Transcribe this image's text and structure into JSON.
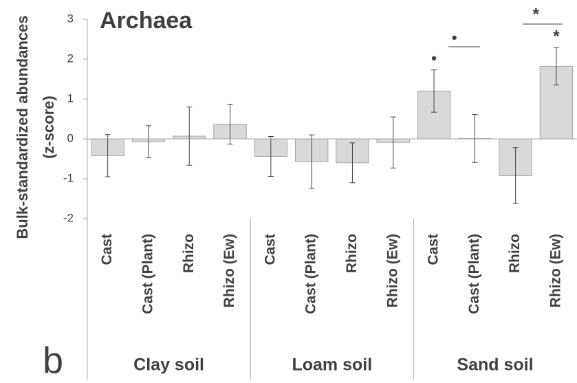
{
  "chart_data": {
    "type": "bar",
    "title": "Archaea",
    "panel_label": "b",
    "ylabel": [
      "Bulk-standardized abundances",
      "(z-score)"
    ],
    "categories": [
      "Cast",
      "Cast (Plant)",
      "Rhizo",
      "Rhizo (Ew)",
      "Cast",
      "Cast (Plant)",
      "Rhizo",
      "Rhizo (Ew)",
      "Cast",
      "Cast (Plant)",
      "Rhizo",
      "Rhizo (Ew)"
    ],
    "groups": [
      "Clay soil",
      "Loam soil",
      "Sand soil"
    ],
    "values": [
      -0.42,
      -0.07,
      0.07,
      0.37,
      -0.44,
      -0.57,
      -0.6,
      -0.09,
      1.2,
      0.01,
      -0.92,
      1.82
    ],
    "errors": [
      0.53,
      0.4,
      0.73,
      0.5,
      0.5,
      0.67,
      0.5,
      0.64,
      0.53,
      0.6,
      0.7,
      0.47
    ],
    "color": "#d9d9d9",
    "annotations": [
      "•",
      "•",
      "*",
      "*"
    ],
    "ylim": [
      -2,
      3
    ],
    "yticks": [
      -2,
      -1,
      0,
      1,
      2,
      3
    ]
  }
}
